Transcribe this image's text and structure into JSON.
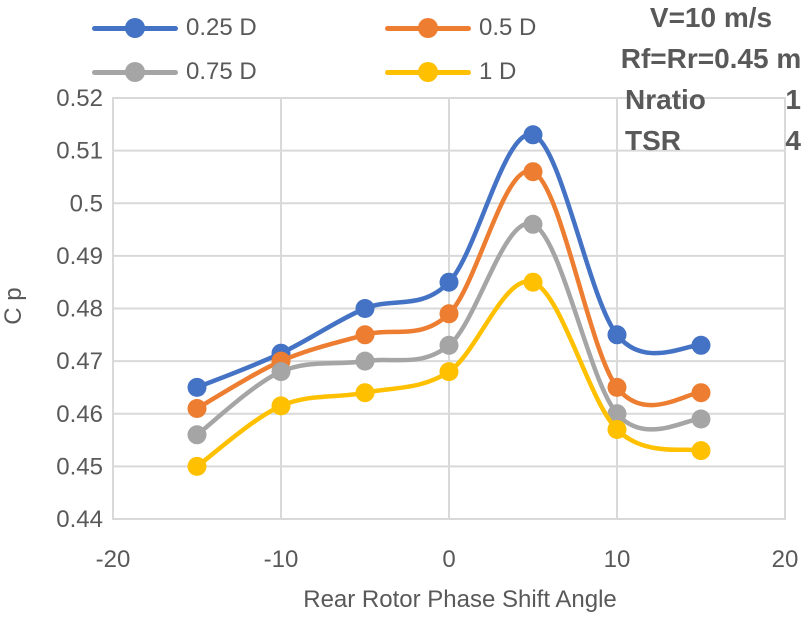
{
  "chart_data": {
    "type": "line",
    "title": "",
    "xlabel": "Rear Rotor Phase Shift Angle",
    "ylabel": "C p",
    "x": [
      -15,
      -10,
      -5,
      0,
      5,
      10,
      15
    ],
    "series": [
      {
        "name": "0.25 D",
        "color": "#4472C4",
        "values": [
          0.465,
          0.4715,
          0.48,
          0.485,
          0.513,
          0.475,
          0.473
        ]
      },
      {
        "name": "0.5 D",
        "color": "#ED7D31",
        "values": [
          0.461,
          0.47,
          0.475,
          0.479,
          0.506,
          0.465,
          0.464
        ]
      },
      {
        "name": "0.75 D",
        "color": "#A5A5A5",
        "values": [
          0.456,
          0.468,
          0.47,
          0.473,
          0.496,
          0.46,
          0.459
        ]
      },
      {
        "name": "1 D",
        "color": "#FFC000",
        "values": [
          0.45,
          0.4615,
          0.464,
          0.468,
          0.485,
          0.457,
          0.453
        ]
      }
    ],
    "xlim": [
      -20,
      20
    ],
    "ylim": [
      0.44,
      0.52
    ],
    "xticks": {
      "values": [
        -20,
        -10,
        0,
        10,
        20
      ],
      "labels": [
        "-20",
        "-10",
        "0",
        "10",
        "20"
      ]
    },
    "yticks": {
      "values": [
        0.44,
        0.45,
        0.46,
        0.47,
        0.48,
        0.49,
        0.5,
        0.51,
        0.52
      ],
      "labels": [
        "0.44",
        "0.45",
        "0.46",
        "0.47",
        "0.48",
        "0.49",
        "0.5",
        "0.51",
        "0.52"
      ]
    },
    "grid": true,
    "line_style": "smooth",
    "marker": "circle",
    "legend_position": "top"
  },
  "annotations": {
    "line1": "V=10 m/s",
    "line2": "Rf=Rr=0.45 m",
    "rows": [
      {
        "label": "Nratio",
        "value": "1"
      },
      {
        "label": "TSR",
        "value": "4"
      }
    ]
  },
  "styles": {
    "text_color": "#595959",
    "grid_color": "#D9D9D9"
  }
}
